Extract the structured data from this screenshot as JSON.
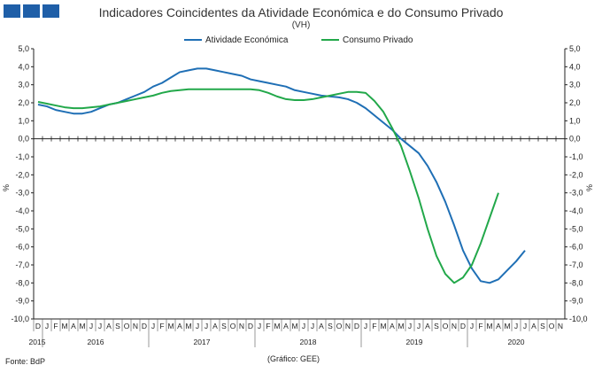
{
  "header": {
    "title": "Indicadores Coincidentes da Atividade Económica e do Consumo Privado",
    "subtitle": "(VH)"
  },
  "footer": {
    "source": "Fonte: BdP",
    "credit": "(Gráfico: GEE)"
  },
  "chart_data": {
    "type": "line",
    "title": "Indicadores Coincidentes da Atividade Económica e do Consumo Privado",
    "subtitle": "(VH)",
    "ylabel_left": "%",
    "ylabel_right": "%",
    "ylim": [
      -10,
      5
    ],
    "yticks": [
      "5,0",
      "4,0",
      "3,0",
      "2,0",
      "1,0",
      "0,0",
      "-1,0",
      "-2,0",
      "-3,0",
      "-4,0",
      "-5,0",
      "-6,0",
      "-7,0",
      "-8,0",
      "-9,0",
      "-10,0"
    ],
    "legend_position": "top",
    "grid": false,
    "month_labels": [
      "D",
      "J",
      "F",
      "M",
      "A",
      "M",
      "J",
      "J",
      "A",
      "S",
      "O",
      "N",
      "D",
      "J",
      "F",
      "M",
      "A",
      "M",
      "J",
      "J",
      "A",
      "S",
      "O",
      "N",
      "D",
      "J",
      "F",
      "M",
      "A",
      "M",
      "J",
      "J",
      "A",
      "S",
      "O",
      "N",
      "D",
      "J",
      "F",
      "M",
      "A",
      "M",
      "J",
      "J",
      "A",
      "S",
      "O",
      "N",
      "D",
      "J",
      "F",
      "M",
      "A",
      "M",
      "J",
      "J",
      "A",
      "S",
      "O",
      "N"
    ],
    "year_labels": [
      "2015",
      "2016",
      "2017",
      "2018",
      "2019",
      "2020"
    ],
    "series": [
      {
        "name": "Atividade Económica",
        "color": "#1f6fb5",
        "values": [
          1.9,
          1.8,
          1.6,
          1.5,
          1.4,
          1.4,
          1.5,
          1.7,
          1.9,
          2.0,
          2.2,
          2.4,
          2.6,
          2.9,
          3.1,
          3.4,
          3.7,
          3.8,
          3.9,
          3.9,
          3.8,
          3.7,
          3.6,
          3.5,
          3.3,
          3.2,
          3.1,
          3.0,
          2.9,
          2.7,
          2.6,
          2.5,
          2.4,
          2.35,
          2.3,
          2.2,
          2.0,
          1.7,
          1.3,
          0.9,
          0.5,
          0.0,
          -0.4,
          -0.8,
          -1.5,
          -2.4,
          -3.5,
          -4.8,
          -6.2,
          -7.2,
          -7.9,
          -8.0,
          -7.8,
          -7.3,
          -6.8,
          -6.2
        ]
      },
      {
        "name": "Consumo Privado",
        "color": "#22a84a",
        "values": [
          2.05,
          1.95,
          1.85,
          1.75,
          1.7,
          1.7,
          1.75,
          1.8,
          1.9,
          2.0,
          2.1,
          2.2,
          2.3,
          2.4,
          2.55,
          2.65,
          2.7,
          2.75,
          2.75,
          2.75,
          2.75,
          2.75,
          2.75,
          2.75,
          2.75,
          2.7,
          2.55,
          2.35,
          2.2,
          2.15,
          2.15,
          2.2,
          2.3,
          2.4,
          2.5,
          2.6,
          2.6,
          2.55,
          2.1,
          1.5,
          0.6,
          -0.4,
          -1.8,
          -3.3,
          -5.0,
          -6.5,
          -7.5,
          -8.0,
          -7.7,
          -7.0,
          -5.8,
          -4.4,
          -3.0
        ]
      }
    ]
  }
}
